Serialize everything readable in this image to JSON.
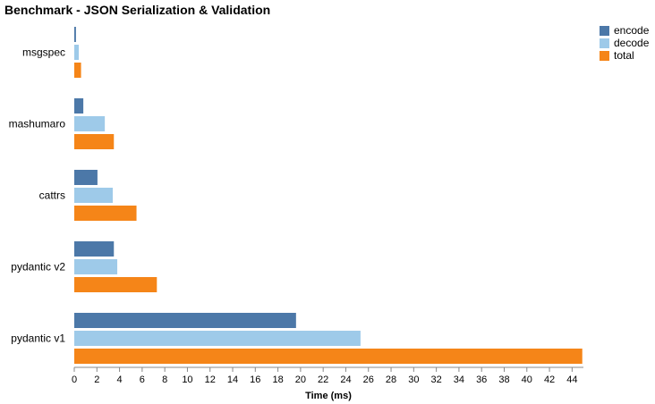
{
  "chart_data": {
    "type": "bar",
    "orientation": "horizontal",
    "title": "Benchmark - JSON Serialization & Validation",
    "xlabel": "Time (ms)",
    "ylabel": "",
    "categories": [
      "msgspec",
      "mashumaro",
      "cattrs",
      "pydantic v2",
      "pydantic v1"
    ],
    "series": [
      {
        "name": "encode",
        "color": "#4c78a8",
        "values": [
          0.15,
          0.8,
          2.05,
          3.5,
          19.6
        ]
      },
      {
        "name": "decode",
        "color": "#9ecae9",
        "values": [
          0.4,
          2.7,
          3.4,
          3.8,
          25.3
        ]
      },
      {
        "name": "total",
        "color": "#f58518",
        "values": [
          0.6,
          3.5,
          5.5,
          7.3,
          44.9
        ]
      }
    ],
    "xlim": [
      0,
      45
    ],
    "xticks": [
      0,
      2,
      4,
      6,
      8,
      10,
      12,
      14,
      16,
      18,
      20,
      22,
      24,
      26,
      28,
      30,
      32,
      34,
      36,
      38,
      40,
      42,
      44
    ],
    "grid": false,
    "legend": "top-right"
  }
}
